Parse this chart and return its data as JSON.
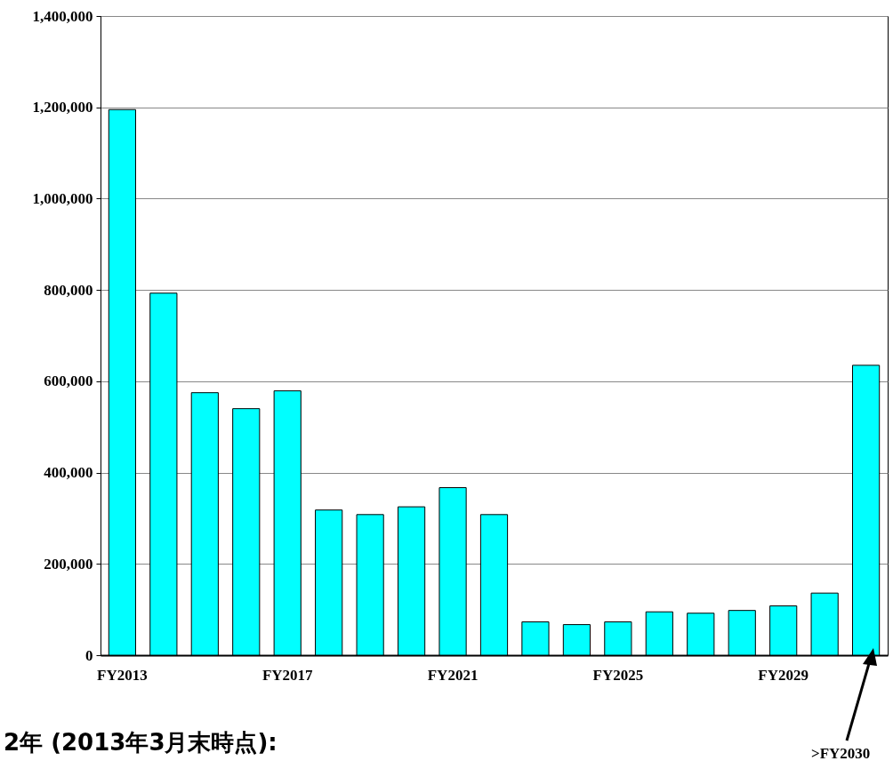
{
  "chart_data": {
    "type": "bar",
    "categories": [
      "FY2013",
      null,
      null,
      null,
      "FY2017",
      null,
      null,
      null,
      "FY2021",
      null,
      null,
      null,
      "FY2025",
      null,
      null,
      null,
      "FY2029",
      null,
      null
    ],
    "values": [
      1195000,
      793000,
      575000,
      540000,
      579000,
      318000,
      308000,
      325000,
      367000,
      308000,
      73000,
      67000,
      73000,
      95000,
      92000,
      98000,
      108000,
      136000,
      635000
    ],
    "color": "#00ffff",
    "ylim": [
      0,
      1400000
    ],
    "yticks": [
      {
        "value": 0,
        "label": "0"
      },
      {
        "value": 200000,
        "label": "200,000"
      },
      {
        "value": 400000,
        "label": "400,000"
      },
      {
        "value": 600000,
        "label": "600,000"
      },
      {
        "value": 800000,
        "label": "800,000"
      },
      {
        "value": 1000000,
        "label": "1,000,000"
      },
      {
        "value": 1200000,
        "label": "1,200,000"
      },
      {
        "value": 1400000,
        "label": "1,400,000"
      }
    ],
    "grid": "y",
    "annotations": [
      "2年 (2013年3月末時点):",
      ">FY2030"
    ]
  }
}
